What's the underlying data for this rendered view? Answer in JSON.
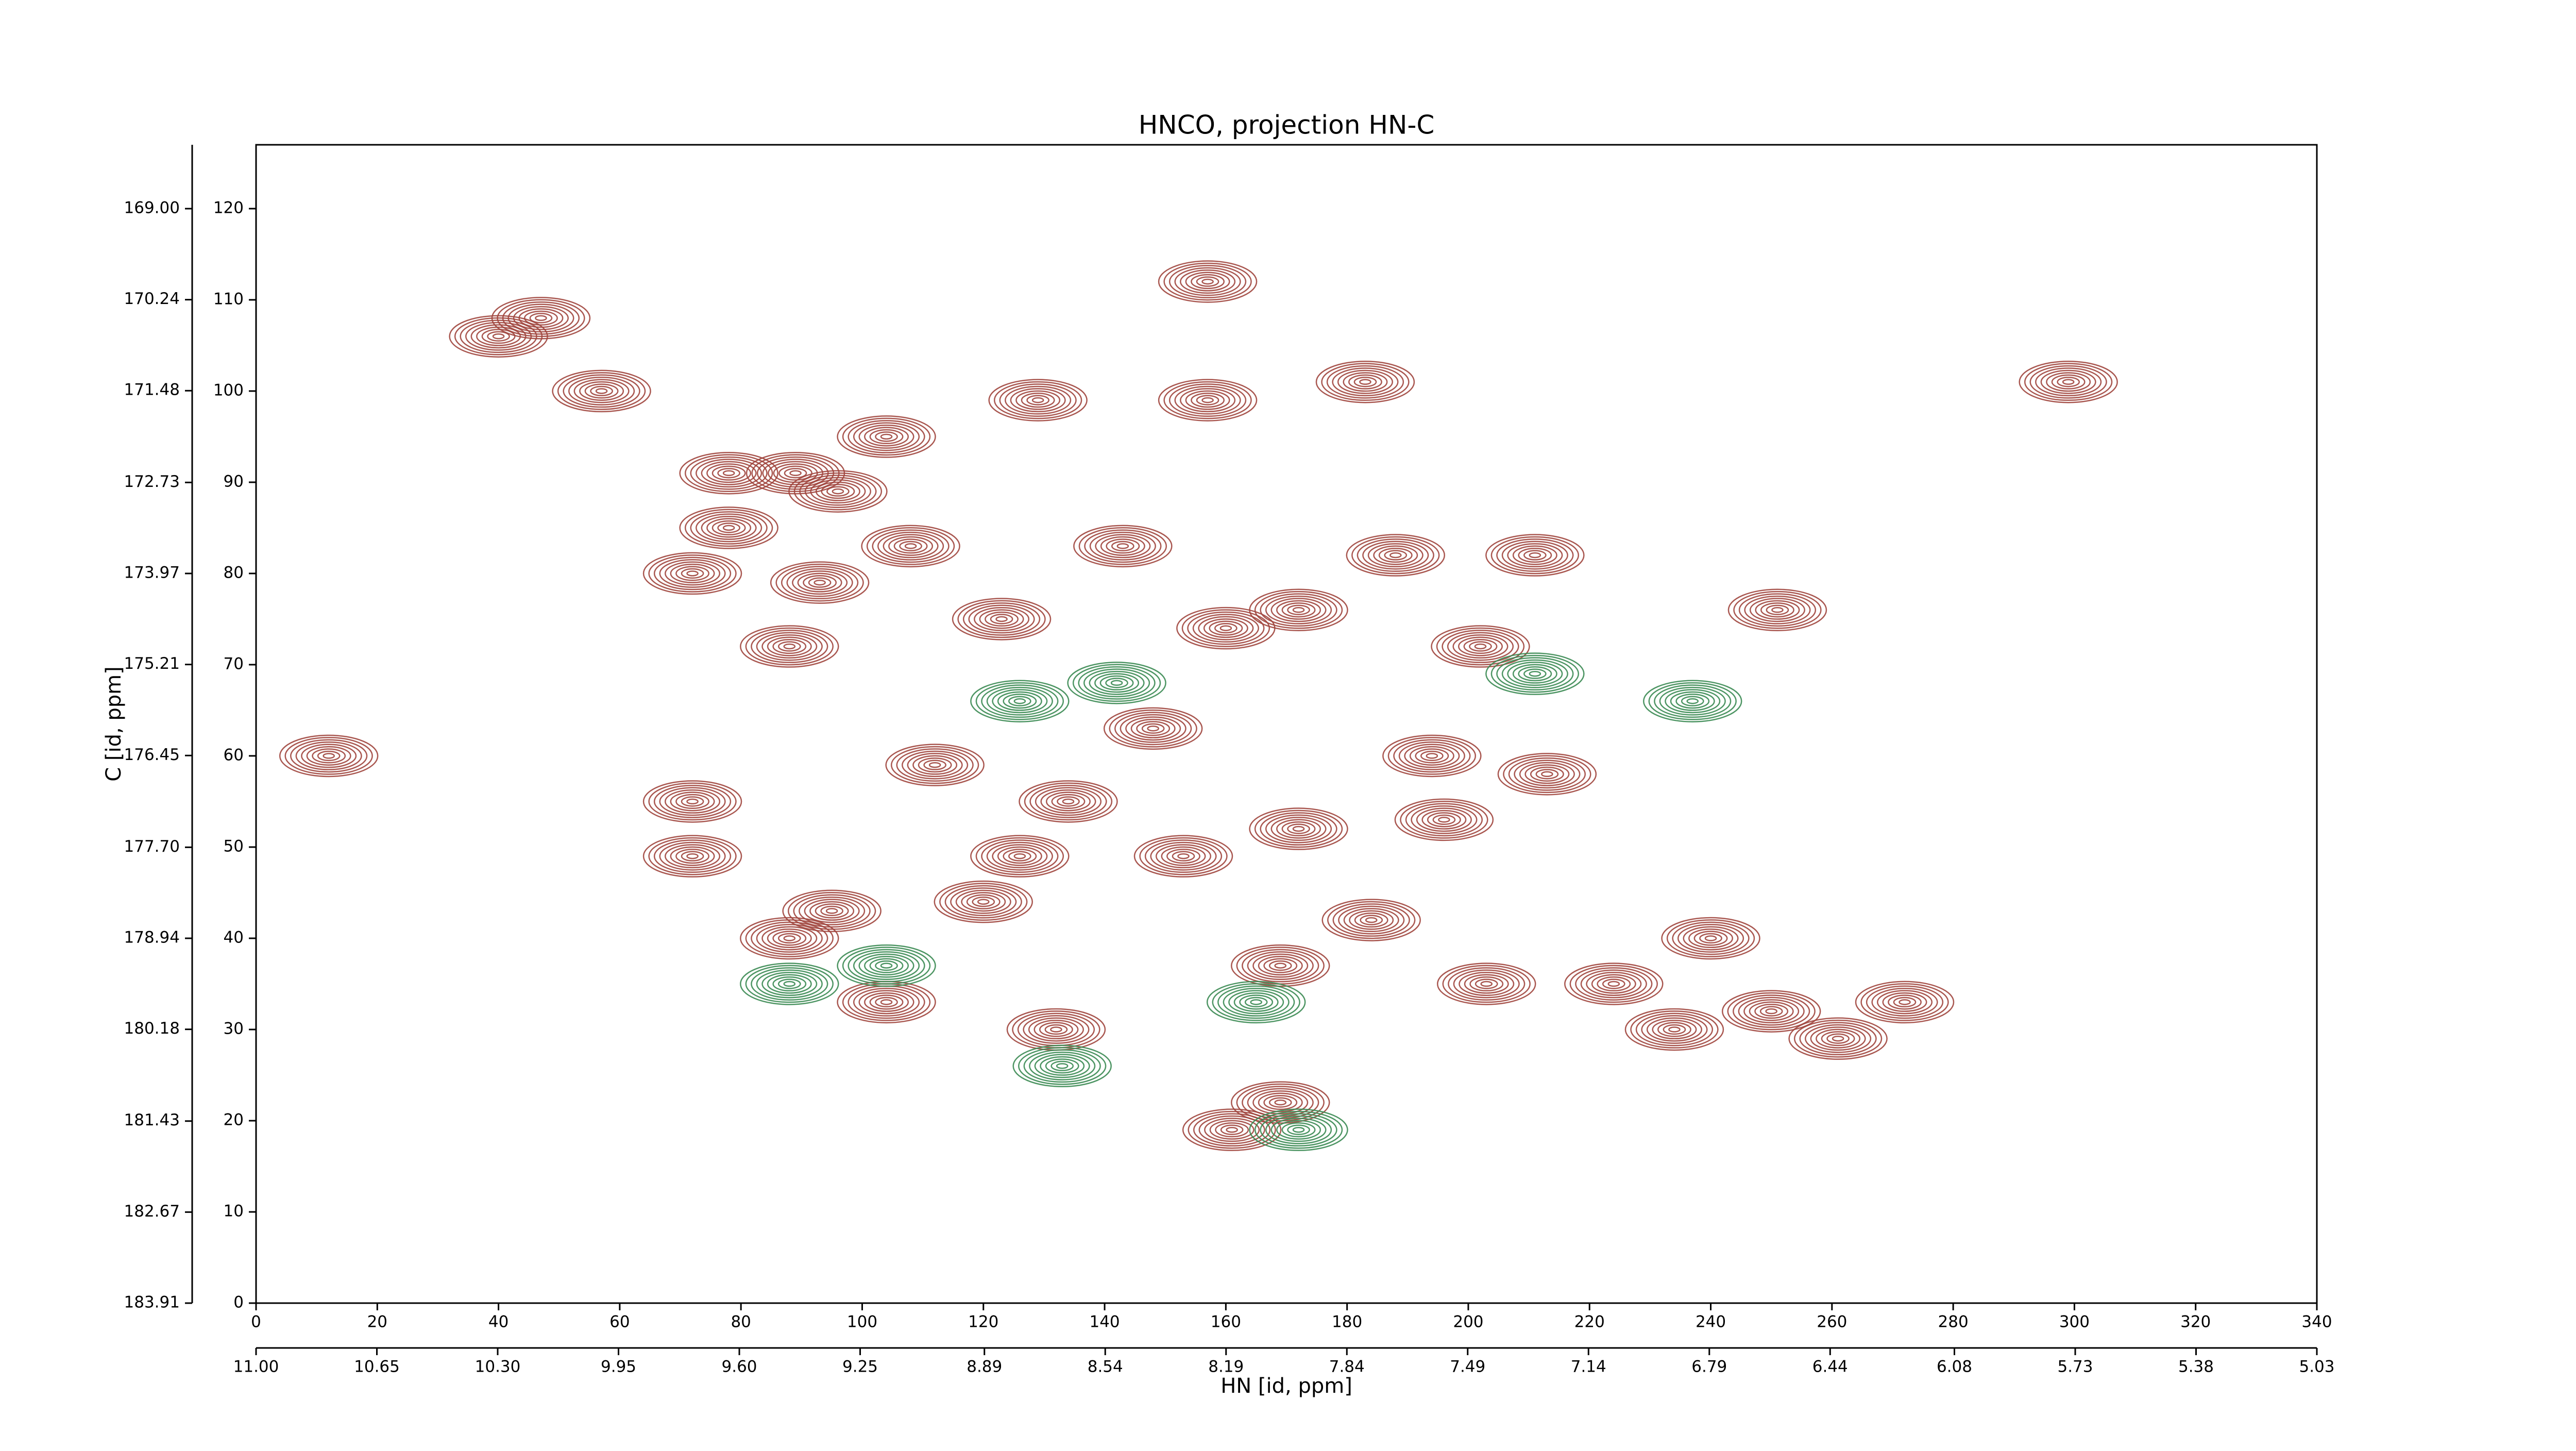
{
  "chart_data": {
    "type": "contour",
    "title": "HNCO, projection HN-C",
    "xlabel": "HN [id, ppm]",
    "ylabel": "C [id, ppm]",
    "xlim": [
      0,
      340
    ],
    "xticks": [
      0,
      20,
      40,
      60,
      80,
      100,
      120,
      140,
      160,
      180,
      200,
      220,
      240,
      260,
      280,
      300,
      320,
      340
    ],
    "ylim": [
      0,
      127
    ],
    "yticks": [
      0,
      10,
      20,
      30,
      40,
      50,
      60,
      70,
      80,
      90,
      100,
      110,
      120
    ],
    "x2lim": [
      11,
      5.03
    ],
    "x2ticks": [
      {
        "value": 11,
        "label": "11.00"
      },
      10.65,
      {
        "value": 10.3,
        "label": "10.30"
      },
      9.95,
      {
        "value": 9.6,
        "label": "9.60"
      },
      9.25,
      8.89,
      8.54,
      8.19,
      7.84,
      7.49,
      7.14,
      6.79,
      6.44,
      6.08,
      5.73,
      5.38,
      5.03
    ],
    "y2lim": [
      183.91,
      168.13
    ],
    "y2ticks": [
      183.91,
      182.67,
      181.43,
      180.18,
      178.94,
      {
        "value": 177.7,
        "label": "177.70"
      },
      176.45,
      175.21,
      173.97,
      172.73,
      171.48,
      170.24,
      {
        "value": 169,
        "label": "169.00"
      }
    ],
    "series": [
      {
        "color": "#a0453d",
        "x": [
          12,
          57,
          47,
          40,
          72,
          78,
          78,
          72,
          72,
          89,
          96,
          88,
          93,
          88,
          95,
          104,
          108,
          104,
          112,
          123,
          129,
          134,
          132,
          120,
          143,
          157,
          157,
          160,
          172,
          172,
          169,
          169,
          161,
          183,
          188,
          194,
          202,
          211,
          213,
          203,
          196,
          251,
          240,
          234,
          224,
          250,
          261,
          272,
          299,
          148,
          153,
          126,
          184
        ],
        "values": [
          60,
          100,
          108,
          106,
          80,
          91,
          85,
          55,
          49,
          91,
          89,
          72,
          79,
          40,
          43,
          33,
          83,
          95,
          59,
          75,
          99,
          55,
          30,
          44,
          83,
          112,
          99,
          74,
          76,
          52,
          37,
          22,
          19,
          101,
          82,
          60,
          72,
          82,
          58,
          35,
          53,
          76,
          40,
          30,
          35,
          32,
          29,
          33,
          101,
          63,
          49,
          49,
          42
        ]
      },
      {
        "color": "#3a8a52",
        "x": [
          237,
          211,
          142,
          126,
          88,
          104,
          133,
          172,
          165
        ],
        "values": [
          66,
          69,
          68,
          66,
          35,
          37,
          26,
          19,
          33
        ]
      }
    ]
  }
}
